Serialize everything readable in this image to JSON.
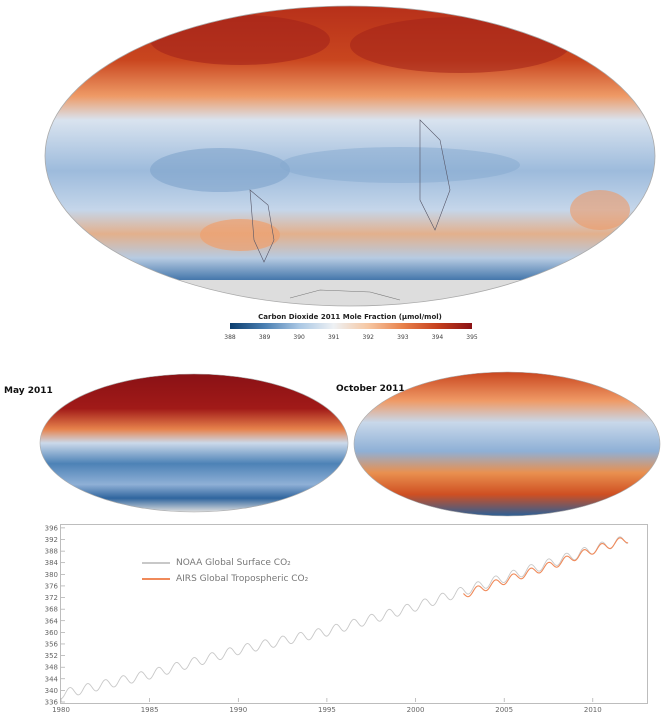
{
  "colorbar": {
    "title": "Carbon Dioxide 2011 Mole Fraction (µmol/mol)",
    "ticks": [
      "388",
      "389",
      "390",
      "391",
      "392",
      "393",
      "394",
      "395"
    ],
    "colors": [
      "#0b3d6e",
      "#4a7fb2",
      "#aac7e4",
      "#eef1f4",
      "#f6c7a2",
      "#e8814b",
      "#c6401e",
      "#8a1115"
    ]
  },
  "panels": {
    "may_label": "May 2011",
    "october_label": "October 2011"
  },
  "chart_data": {
    "type": "line",
    "xlim": [
      1980,
      2013
    ],
    "ylim": [
      336,
      397
    ],
    "xticks": [
      1980,
      1985,
      1990,
      1995,
      2000,
      2005,
      2010
    ],
    "yticks": [
      336,
      340,
      344,
      348,
      352,
      356,
      360,
      364,
      368,
      372,
      376,
      380,
      384,
      388,
      392,
      396
    ],
    "series": [
      {
        "name": "NOAA Global Surface CO₂",
        "color": "#c8c8c8",
        "trend_points": [
          [
            1980,
            338.7
          ],
          [
            1985,
            345.5
          ],
          [
            1990,
            353.9
          ],
          [
            1995,
            360.3
          ],
          [
            2000,
            368.9
          ],
          [
            2005,
            378.8
          ],
          [
            2010,
            388.6
          ],
          [
            2012,
            392.2
          ]
        ],
        "seasonal_amplitude": 1.6
      },
      {
        "name": "AIRS Global Tropospheric CO₂",
        "color": "#f08a5a",
        "trend_points": [
          [
            2002.7,
            373.0
          ],
          [
            2005,
            377.8
          ],
          [
            2008,
            383.8
          ],
          [
            2010,
            388.3
          ],
          [
            2012,
            392.2
          ]
        ],
        "seasonal_amplitude": 1.3
      }
    ]
  }
}
